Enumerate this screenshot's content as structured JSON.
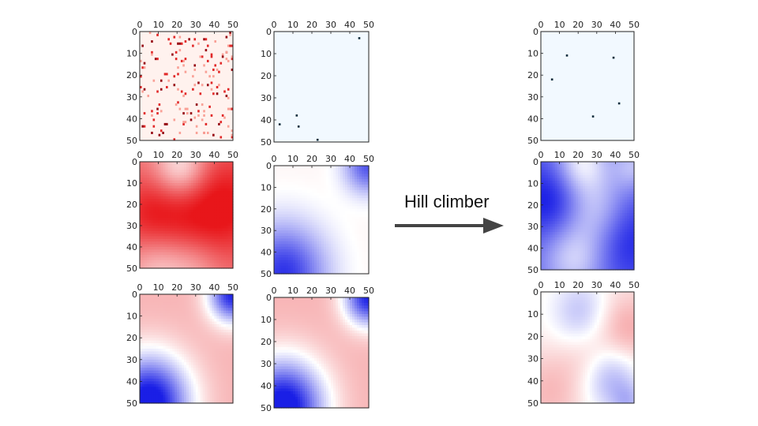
{
  "figure": {
    "arrow_label": "Hill climber",
    "axis_ticks": [
      "0",
      "10",
      "20",
      "30",
      "40",
      "50"
    ]
  },
  "panels": [
    {
      "id": "left-1-1",
      "kind": "heatmap",
      "colormap": "reds-sparse"
    },
    {
      "id": "left-1-2",
      "kind": "sparse-points",
      "colormap": "blues-light",
      "points": [
        [
          45,
          3
        ],
        [
          12,
          38
        ],
        [
          3,
          42
        ],
        [
          13,
          43
        ],
        [
          23,
          49
        ]
      ]
    },
    {
      "id": "left-2-1",
      "kind": "field",
      "colormap": "red-dominant"
    },
    {
      "id": "left-2-2",
      "kind": "field",
      "colormap": "blue-white-corners"
    },
    {
      "id": "left-3-1",
      "kind": "field",
      "colormap": "pink-blue-corners"
    },
    {
      "id": "left-3-2",
      "kind": "field",
      "colormap": "pink-blue-corners"
    },
    {
      "id": "right-1",
      "kind": "sparse-points",
      "colormap": "blues-light",
      "points": [
        [
          14,
          11
        ],
        [
          39,
          12
        ],
        [
          6,
          22
        ],
        [
          42,
          33
        ],
        [
          28,
          39
        ]
      ]
    },
    {
      "id": "right-2",
      "kind": "field",
      "colormap": "blue-dominant"
    },
    {
      "id": "right-3",
      "kind": "field",
      "colormap": "pink-blue-mixed"
    }
  ],
  "colors": {
    "red_strong": "#e8161a",
    "blue_strong": "#1a1fe6",
    "pink_light": "#f7c5c5",
    "light_blue_bg": "#f2f9ff",
    "arrow": "#444444"
  }
}
